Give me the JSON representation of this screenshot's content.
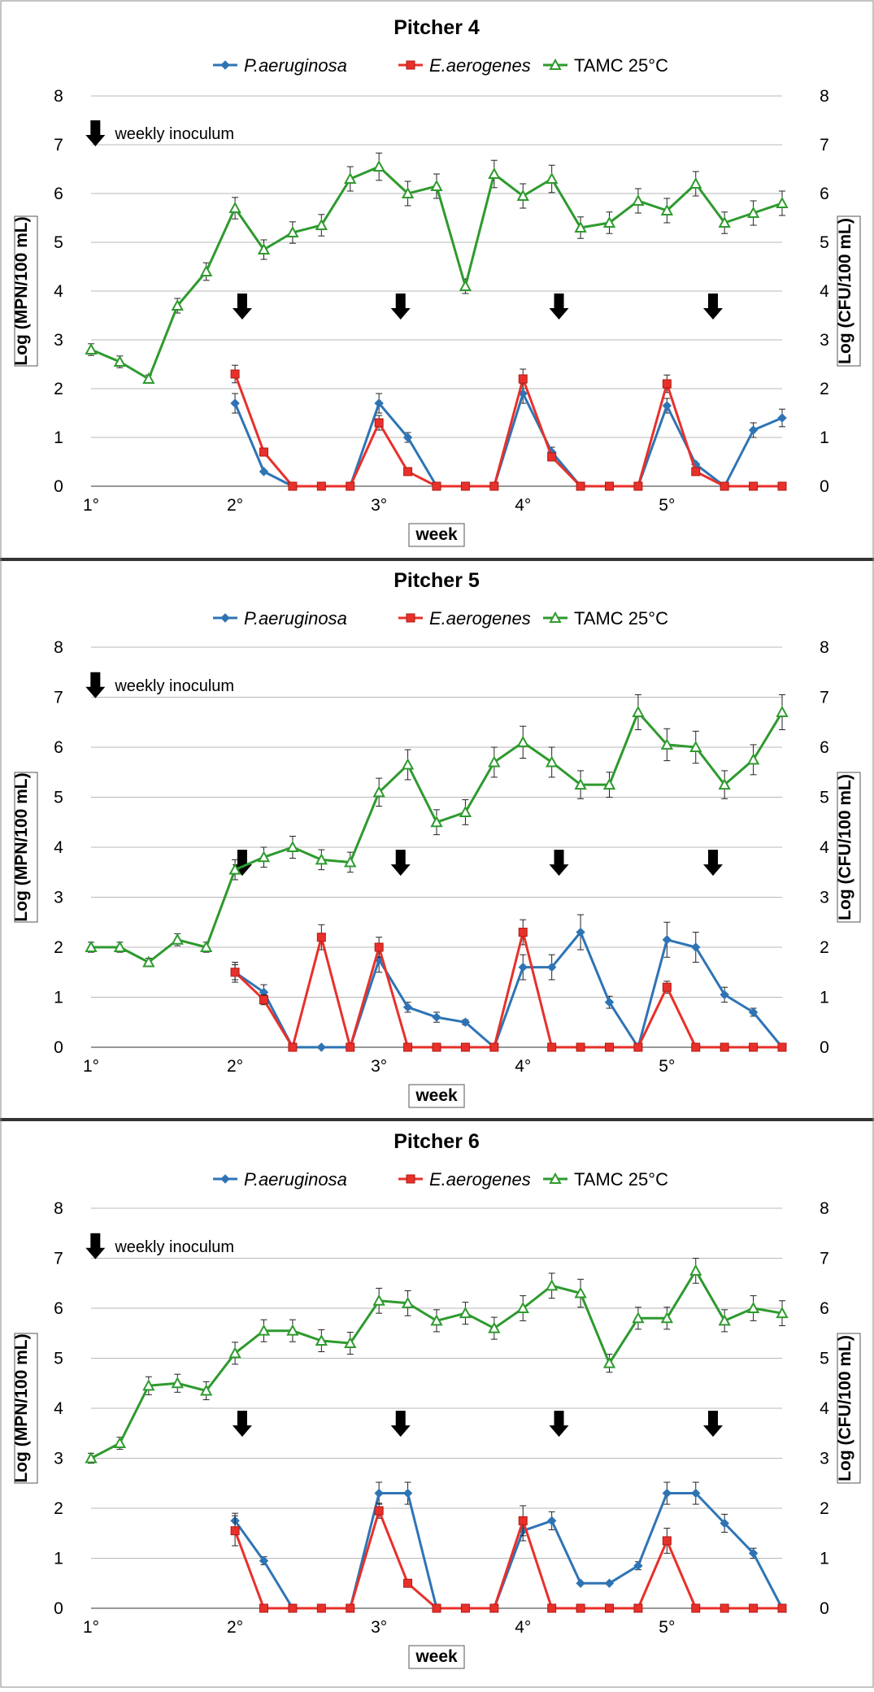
{
  "figure": {
    "background": "#ffffff"
  },
  "legend_labels": {
    "pa": "P.aeruginosa",
    "ea": "E.aerogenes",
    "tamc": "TAMC 25°C"
  },
  "annotation_text": "weekly inoculum",
  "colors": {
    "pa": "#2e74b5",
    "ea": "#e8302a",
    "tamc": "#2e9a2e"
  },
  "chart_data": [
    {
      "type": "line",
      "title": "Pitcher 4",
      "xlabel": "week",
      "ylabel": "Log (MPN/100 mL)",
      "y2label": "Log (CFU/100 mL)",
      "ylim": [
        0,
        8
      ],
      "yticks": [
        "0",
        "1",
        "2",
        "3",
        "4",
        "5",
        "6",
        "7",
        "8"
      ],
      "xticks": [
        {
          "x": 1,
          "label": "1°"
        },
        {
          "x": 2,
          "label": "2°"
        },
        {
          "x": 3,
          "label": "3°"
        },
        {
          "x": 4,
          "label": "4°"
        },
        {
          "x": 5,
          "label": "5°"
        }
      ],
      "grid": "horizontal",
      "legend": "top",
      "inoculum_arrows_x": [
        2.05,
        3.15,
        4.25,
        5.32
      ],
      "series": [
        {
          "name": "P.aeruginosa",
          "key": "pa",
          "marker": "diamond",
          "x": [
            2.0,
            2.2,
            2.4,
            2.6,
            2.8,
            3.0,
            3.2,
            3.4,
            3.6,
            3.8,
            4.0,
            4.2,
            4.4,
            4.6,
            4.8,
            5.0,
            5.2,
            5.4,
            5.6,
            5.8
          ],
          "y": [
            1.7,
            0.3,
            0.0,
            0.0,
            0.0,
            1.7,
            1.0,
            0.0,
            0.0,
            0.0,
            1.9,
            0.7,
            0.0,
            0.0,
            0.0,
            1.65,
            0.45,
            0.0,
            1.15,
            1.4
          ],
          "err": [
            0.2,
            0.0,
            0.0,
            0.0,
            0.0,
            0.2,
            0.1,
            0.0,
            0.0,
            0.0,
            0.2,
            0.1,
            0.0,
            0.0,
            0.0,
            0.15,
            0.0,
            0.0,
            0.15,
            0.18
          ]
        },
        {
          "name": "E.aerogenes",
          "key": "ea",
          "marker": "square",
          "x": [
            2.0,
            2.2,
            2.4,
            2.6,
            2.8,
            3.0,
            3.2,
            3.4,
            3.6,
            3.8,
            4.0,
            4.2,
            4.4,
            4.6,
            4.8,
            5.0,
            5.2,
            5.4,
            5.6,
            5.8
          ],
          "y": [
            2.3,
            0.7,
            0.0,
            0.0,
            0.0,
            1.3,
            0.3,
            0.0,
            0.0,
            0.0,
            2.2,
            0.6,
            0.0,
            0.0,
            0.0,
            2.1,
            0.3,
            0.0,
            0.0,
            0.0
          ],
          "err": [
            0.18,
            0.0,
            0.0,
            0.0,
            0.0,
            0.15,
            0.0,
            0.0,
            0.0,
            0.0,
            0.2,
            0.0,
            0.0,
            0.0,
            0.0,
            0.18,
            0.0,
            0.0,
            0.0,
            0.0
          ]
        },
        {
          "name": "TAMC 25°C",
          "key": "tamc",
          "marker": "triangle",
          "x": [
            1.0,
            1.2,
            1.4,
            1.6,
            1.8,
            2.0,
            2.2,
            2.4,
            2.6,
            2.8,
            3.0,
            3.2,
            3.4,
            3.6,
            3.8,
            4.0,
            4.2,
            4.4,
            4.6,
            4.8,
            5.0,
            5.2,
            5.4,
            5.6,
            5.8
          ],
          "y": [
            2.8,
            2.55,
            2.2,
            3.7,
            4.4,
            5.7,
            4.85,
            5.2,
            5.35,
            6.3,
            6.55,
            6.0,
            6.15,
            4.1,
            6.4,
            5.95,
            6.3,
            5.3,
            5.4,
            5.85,
            5.65,
            6.2,
            5.4,
            5.6,
            5.8
          ],
          "err": [
            0.12,
            0.12,
            0.08,
            0.15,
            0.18,
            0.22,
            0.2,
            0.22,
            0.22,
            0.25,
            0.28,
            0.25,
            0.25,
            0.15,
            0.28,
            0.25,
            0.28,
            0.22,
            0.22,
            0.25,
            0.25,
            0.25,
            0.22,
            0.25,
            0.25
          ]
        }
      ]
    },
    {
      "type": "line",
      "title": "Pitcher 5",
      "xlabel": "week",
      "ylabel": "Log (MPN/100 mL)",
      "y2label": "Log (CFU/100 mL)",
      "ylim": [
        0,
        8
      ],
      "yticks": [
        "0",
        "1",
        "2",
        "3",
        "4",
        "5",
        "6",
        "7",
        "8"
      ],
      "xticks": [
        {
          "x": 1,
          "label": "1°"
        },
        {
          "x": 2,
          "label": "2°"
        },
        {
          "x": 3,
          "label": "3°"
        },
        {
          "x": 4,
          "label": "4°"
        },
        {
          "x": 5,
          "label": "5°"
        }
      ],
      "grid": "horizontal",
      "legend": "top",
      "inoculum_arrows_x": [
        2.05,
        3.15,
        4.25,
        5.32
      ],
      "series": [
        {
          "name": "P.aeruginosa",
          "key": "pa",
          "marker": "diamond",
          "x": [
            2.0,
            2.2,
            2.4,
            2.6,
            2.8,
            3.0,
            3.2,
            3.4,
            3.6,
            3.8,
            4.0,
            4.2,
            4.4,
            4.6,
            4.8,
            5.0,
            5.2,
            5.4,
            5.6,
            5.8
          ],
          "y": [
            1.5,
            1.1,
            0.0,
            0.0,
            0.0,
            1.75,
            0.8,
            0.6,
            0.5,
            0.0,
            1.6,
            1.6,
            2.3,
            0.9,
            0.0,
            2.15,
            2.0,
            1.05,
            0.7,
            0.0
          ],
          "err": [
            0.2,
            0.15,
            0.0,
            0.0,
            0.0,
            0.25,
            0.1,
            0.1,
            0.05,
            0.0,
            0.25,
            0.25,
            0.35,
            0.12,
            0.0,
            0.35,
            0.3,
            0.15,
            0.08,
            0.0
          ]
        },
        {
          "name": "E.aerogenes",
          "key": "ea",
          "marker": "square",
          "x": [
            2.0,
            2.2,
            2.4,
            2.6,
            2.8,
            3.0,
            3.2,
            3.4,
            3.6,
            3.8,
            4.0,
            4.2,
            4.4,
            4.6,
            4.8,
            5.0,
            5.2,
            5.4,
            5.6,
            5.8
          ],
          "y": [
            1.5,
            0.95,
            0.0,
            2.2,
            0.0,
            2.0,
            0.0,
            0.0,
            0.0,
            0.0,
            2.3,
            0.0,
            0.0,
            0.0,
            0.0,
            1.2,
            0.0,
            0.0,
            0.0,
            0.0
          ],
          "err": [
            0.15,
            0.1,
            0.0,
            0.25,
            0.0,
            0.2,
            0.0,
            0.0,
            0.0,
            0.0,
            0.25,
            0.0,
            0.0,
            0.0,
            0.0,
            0.12,
            0.0,
            0.0,
            0.0,
            0.0
          ]
        },
        {
          "name": "TAMC 25°C",
          "key": "tamc",
          "marker": "triangle",
          "x": [
            1.0,
            1.2,
            1.4,
            1.6,
            1.8,
            2.0,
            2.2,
            2.4,
            2.6,
            2.8,
            3.0,
            3.2,
            3.4,
            3.6,
            3.8,
            4.0,
            4.2,
            4.4,
            4.6,
            4.8,
            5.0,
            5.2,
            5.4,
            5.6,
            5.8
          ],
          "y": [
            2.0,
            2.0,
            1.7,
            2.15,
            2.0,
            3.55,
            3.8,
            4.0,
            3.75,
            3.7,
            5.1,
            5.65,
            4.5,
            4.7,
            5.7,
            6.1,
            5.7,
            5.25,
            5.25,
            6.7,
            6.05,
            6.0,
            5.25,
            5.75,
            6.7
          ],
          "err": [
            0.1,
            0.1,
            0.08,
            0.12,
            0.1,
            0.2,
            0.2,
            0.22,
            0.2,
            0.2,
            0.28,
            0.3,
            0.25,
            0.25,
            0.3,
            0.32,
            0.3,
            0.28,
            0.25,
            0.35,
            0.32,
            0.32,
            0.28,
            0.3,
            0.35
          ]
        }
      ]
    },
    {
      "type": "line",
      "title": "Pitcher 6",
      "xlabel": "week",
      "ylabel": "Log (MPN/100 mL)",
      "y2label": "Log (CFU/100 mL)",
      "ylim": [
        0,
        8
      ],
      "yticks": [
        "0",
        "1",
        "2",
        "3",
        "4",
        "5",
        "6",
        "7",
        "8"
      ],
      "xticks": [
        {
          "x": 1,
          "label": "1°"
        },
        {
          "x": 2,
          "label": "2°"
        },
        {
          "x": 3,
          "label": "3°"
        },
        {
          "x": 4,
          "label": "4°"
        },
        {
          "x": 5,
          "label": "5°"
        }
      ],
      "grid": "horizontal",
      "legend": "top",
      "inoculum_arrows_x": [
        2.05,
        3.15,
        4.25,
        5.32
      ],
      "series": [
        {
          "name": "P.aeruginosa",
          "key": "pa",
          "marker": "diamond",
          "x": [
            2.0,
            2.2,
            2.4,
            2.6,
            2.8,
            3.0,
            3.2,
            3.4,
            3.6,
            3.8,
            4.0,
            4.2,
            4.4,
            4.6,
            4.8,
            5.0,
            5.2,
            5.4,
            5.6,
            5.8
          ],
          "y": [
            1.75,
            0.95,
            0.0,
            0.0,
            0.0,
            2.3,
            2.3,
            0.0,
            0.0,
            0.0,
            1.55,
            1.75,
            0.5,
            0.5,
            0.85,
            2.3,
            2.3,
            1.7,
            1.1,
            0.0
          ],
          "err": [
            0.15,
            0.08,
            0.0,
            0.0,
            0.0,
            0.22,
            0.22,
            0.0,
            0.0,
            0.0,
            0.2,
            0.18,
            0.0,
            0.0,
            0.08,
            0.22,
            0.22,
            0.18,
            0.1,
            0.0
          ]
        },
        {
          "name": "E.aerogenes",
          "key": "ea",
          "marker": "square",
          "x": [
            2.0,
            2.2,
            2.4,
            2.6,
            2.8,
            3.0,
            3.2,
            3.4,
            3.6,
            3.8,
            4.0,
            4.2,
            4.4,
            4.6,
            4.8,
            5.0,
            5.2,
            5.4,
            5.6,
            5.8
          ],
          "y": [
            1.55,
            0.0,
            0.0,
            0.0,
            0.0,
            1.95,
            0.5,
            0.0,
            0.0,
            0.0,
            1.75,
            0.0,
            0.0,
            0.0,
            0.0,
            1.35,
            0.0,
            0.0,
            0.0,
            0.0
          ],
          "err": [
            0.3,
            0.0,
            0.0,
            0.0,
            0.0,
            0.15,
            0.05,
            0.0,
            0.0,
            0.0,
            0.3,
            0.0,
            0.0,
            0.0,
            0.0,
            0.25,
            0.0,
            0.0,
            0.0,
            0.0
          ]
        },
        {
          "name": "TAMC 25°C",
          "key": "tamc",
          "marker": "triangle",
          "x": [
            1.0,
            1.2,
            1.4,
            1.6,
            1.8,
            2.0,
            2.2,
            2.4,
            2.6,
            2.8,
            3.0,
            3.2,
            3.4,
            3.6,
            3.8,
            4.0,
            4.2,
            4.4,
            4.6,
            4.8,
            5.0,
            5.2,
            5.4,
            5.6,
            5.8
          ],
          "y": [
            3.0,
            3.3,
            4.45,
            4.5,
            4.35,
            5.1,
            5.55,
            5.55,
            5.35,
            5.3,
            6.15,
            6.1,
            5.75,
            5.9,
            5.6,
            6.0,
            6.45,
            6.3,
            4.9,
            5.8,
            5.8,
            6.75,
            5.75,
            6.0,
            5.9
          ],
          "err": [
            0.1,
            0.12,
            0.18,
            0.18,
            0.18,
            0.22,
            0.22,
            0.22,
            0.22,
            0.22,
            0.25,
            0.25,
            0.22,
            0.22,
            0.22,
            0.25,
            0.25,
            0.28,
            0.18,
            0.22,
            0.22,
            0.25,
            0.22,
            0.25,
            0.25
          ]
        }
      ]
    }
  ]
}
